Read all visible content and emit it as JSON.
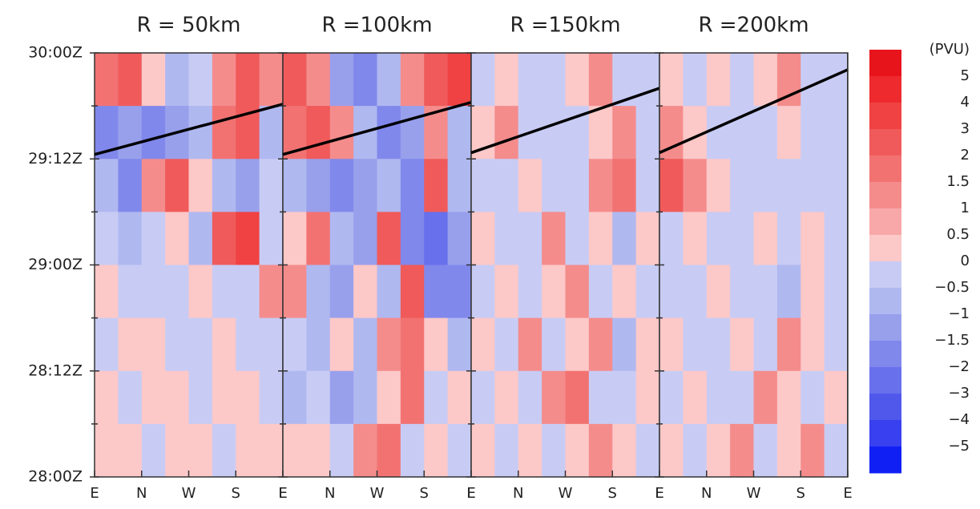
{
  "chart_data": [
    {
      "type": "heatmap",
      "title": "R = 50km",
      "categories": [
        "E",
        "N",
        "W",
        "S",
        "E"
      ],
      "line_y": [
        36.5,
        42.2
      ],
      "z": [
        [
          1.5,
          2,
          0.3,
          -1,
          -0.3,
          1,
          2,
          1
        ],
        [
          -2,
          -1.5,
          -2,
          -1.5,
          -1,
          1.5,
          2,
          -1
        ],
        [
          -1,
          -2,
          1,
          2,
          0.3,
          -1,
          -1.5,
          -0.3
        ],
        [
          -0.3,
          -1,
          -0.3,
          0.3,
          -1,
          2,
          3,
          -0.3
        ],
        [
          0.3,
          -0.3,
          -0.3,
          -0.3,
          0.3,
          -0.3,
          -0.3,
          1
        ],
        [
          -0.3,
          0.3,
          0.3,
          -0.3,
          -0.3,
          0.3,
          -0.3,
          -0.3
        ],
        [
          0.3,
          -0.3,
          0.3,
          0.3,
          -0.3,
          0.3,
          0.3,
          -0.3
        ],
        [
          0.3,
          0.3,
          -0.3,
          0.3,
          0.3,
          -0.3,
          0.3,
          0.3
        ]
      ]
    },
    {
      "type": "heatmap",
      "title": "R =100km",
      "categories": [
        "E",
        "N",
        "W",
        "S",
        "E"
      ],
      "line_y": [
        36.5,
        42.4
      ],
      "z": [
        [
          2,
          1,
          -1.5,
          -2,
          -1,
          1,
          2,
          3
        ],
        [
          1.5,
          2,
          1,
          -1,
          -2,
          -1.5,
          1,
          -1
        ],
        [
          -1,
          -1.5,
          -2,
          -1.5,
          -1,
          -2,
          2,
          -1
        ],
        [
          0.3,
          1.5,
          -1,
          -1.5,
          2,
          -2,
          -3,
          -1.5
        ],
        [
          1,
          -1,
          -1.5,
          0.3,
          -1,
          2,
          -2,
          -2
        ],
        [
          -0.3,
          -1,
          0.3,
          -1,
          1,
          1.5,
          0.3,
          -1
        ],
        [
          -1,
          -0.3,
          -1.5,
          -1,
          0.3,
          1.5,
          -0.3,
          0.3
        ],
        [
          0.3,
          0.3,
          -0.3,
          1,
          1.5,
          -0.3,
          0.3,
          -0.3
        ]
      ]
    },
    {
      "type": "heatmap",
      "title": "R =150km",
      "categories": [
        "E",
        "N",
        "W",
        "S",
        "E"
      ],
      "line_y": [
        36.7,
        44
      ],
      "z": [
        [
          -0.3,
          0.3,
          -0.3,
          -0.3,
          0.3,
          1,
          -0.3,
          -0.3
        ],
        [
          0.3,
          1,
          -0.3,
          -0.3,
          -0.3,
          0.3,
          1,
          -0.3
        ],
        [
          -0.3,
          -0.3,
          0.3,
          -0.3,
          -0.3,
          1,
          1.5,
          -0.3
        ],
        [
          0.3,
          -0.3,
          -0.3,
          1,
          -0.3,
          0.3,
          -1,
          0.3
        ],
        [
          -0.3,
          0.3,
          -0.3,
          0.3,
          1,
          -0.3,
          0.3,
          -0.3
        ],
        [
          0.3,
          -0.3,
          1,
          -0.3,
          0.3,
          1,
          -1,
          0.3
        ],
        [
          -0.3,
          0.3,
          -0.3,
          1,
          1.5,
          -0.3,
          -0.3,
          0.3
        ],
        [
          0.3,
          -0.3,
          0.3,
          -0.3,
          0.3,
          1,
          0.3,
          -0.3
        ]
      ]
    },
    {
      "type": "heatmap",
      "title": "R =200km",
      "categories": [
        "E",
        "N",
        "W",
        "S",
        "E"
      ],
      "line_y": [
        36.7,
        46.1
      ],
      "z": [
        [
          0.3,
          -0.3,
          0.3,
          -0.3,
          0.3,
          1,
          -0.3,
          -0.3
        ],
        [
          1,
          0.3,
          -0.3,
          -0.3,
          -0.3,
          0.3,
          -0.3,
          -0.3
        ],
        [
          2,
          1,
          0.3,
          -0.3,
          -0.3,
          -0.3,
          -0.3,
          -0.3
        ],
        [
          -0.3,
          0.3,
          -0.3,
          -0.3,
          0.3,
          -0.3,
          0.3,
          -0.3
        ],
        [
          -0.3,
          -0.3,
          0.3,
          -0.3,
          -0.3,
          -1,
          0.3,
          -0.3
        ],
        [
          0.3,
          -0.3,
          -0.3,
          0.3,
          -0.3,
          1,
          0.3,
          -0.3
        ],
        [
          -0.3,
          0.3,
          -0.3,
          -0.3,
          1,
          0.3,
          -0.3,
          0.3
        ],
        [
          0.3,
          -0.3,
          0.3,
          1,
          -0.3,
          0.3,
          1,
          -0.3
        ]
      ]
    }
  ],
  "y_axis": {
    "ylim": [
      0,
      48
    ],
    "yticks": [
      {
        "value": 0,
        "label": "28:00Z"
      },
      {
        "value": 12,
        "label": "28:12Z"
      },
      {
        "value": 24,
        "label": "29:00Z"
      },
      {
        "value": 36,
        "label": "29:12Z"
      },
      {
        "value": 48,
        "label": "30:00Z"
      }
    ],
    "minor_yticks": [
      6,
      18,
      30,
      42
    ]
  },
  "colorbar": {
    "label": "(PVU)",
    "levels": [
      5,
      4,
      3,
      2,
      1.5,
      1,
      0.5,
      0,
      {
        "value": -0.5,
        "label": "−0.5"
      },
      {
        "value": -1,
        "label": "−1"
      },
      {
        "value": -1.5,
        "label": "−1.5"
      },
      {
        "value": -2,
        "label": "−2"
      },
      {
        "value": -3,
        "label": "−3"
      },
      {
        "value": -4,
        "label": "−4"
      },
      {
        "value": -5,
        "label": "−5"
      }
    ],
    "colors": [
      "#e8141c",
      "#ee2a2e",
      "#f04242",
      "#f05a5a",
      "#f27272",
      "#f48c8c",
      "#f8a8a8",
      "#fcc8c8",
      "#c8ccf4",
      "#b0b8f0",
      "#98a0ec",
      "#8088ec",
      "#6870ec",
      "#5058ec",
      "#3840f0",
      "#1020f4"
    ]
  }
}
